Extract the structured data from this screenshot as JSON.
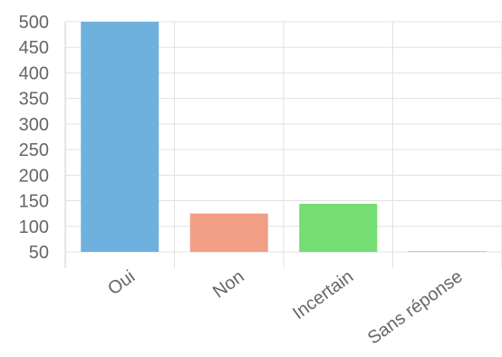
{
  "chart_data": {
    "type": "bar",
    "categories": [
      "Oui",
      "Non",
      "Incertain",
      "Sans réponse"
    ],
    "values": [
      500,
      125,
      144,
      51
    ],
    "colors": [
      "#6fb1de",
      "#f29e84",
      "#74dd74",
      "#c6d49a"
    ],
    "yticks": [
      500,
      450,
      400,
      350,
      300,
      250,
      200,
      150,
      100,
      50
    ],
    "ylim": [
      50,
      500
    ],
    "grid": true,
    "grid_color": "#e1e1e1",
    "axis_color": "#cfcfcf",
    "label_color": "#666666",
    "legend": "none"
  }
}
